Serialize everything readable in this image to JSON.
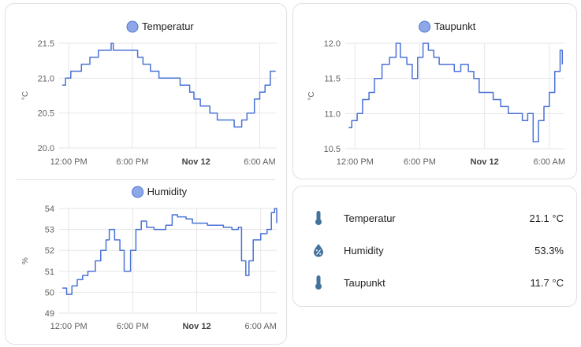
{
  "colors": {
    "line": "#4a72d6",
    "legend_dot": "#8fa7e6",
    "grid": "#e6e6e6",
    "icon": "#44739e"
  },
  "charts": [
    {
      "legend": "Temperatur",
      "unit": "°C",
      "y_ticks": [
        "21.5",
        "21.0",
        "20.5",
        "20.0"
      ],
      "x_ticks": [
        "12:00 PM",
        "6:00 PM",
        "Nov 12",
        "6:00 AM"
      ]
    },
    {
      "legend": "Taupunkt",
      "unit": "°C",
      "y_ticks": [
        "12.0",
        "11.5",
        "11.0",
        "10.5"
      ],
      "x_ticks": [
        "12:00 PM",
        "6:00 PM",
        "Nov 12",
        "6:00 AM"
      ]
    },
    {
      "legend": "Humidity",
      "unit": "%",
      "y_ticks": [
        "54",
        "53",
        "52",
        "51",
        "50",
        "49"
      ],
      "x_ticks": [
        "12:00 PM",
        "6:00 PM",
        "Nov 12",
        "6:00 AM"
      ]
    }
  ],
  "chart_data": [
    {
      "type": "line",
      "title": "",
      "series": [
        {
          "name": "Temperatur",
          "values": [
            [
              -0.6,
              20.9
            ],
            [
              -0.3,
              21.0
            ],
            [
              0.2,
              21.1
            ],
            [
              1.2,
              21.2
            ],
            [
              2.0,
              21.3
            ],
            [
              2.8,
              21.4
            ],
            [
              4.0,
              21.5
            ],
            [
              4.2,
              21.4
            ],
            [
              5.0,
              21.4
            ],
            [
              5.8,
              21.4
            ],
            [
              6.5,
              21.3
            ],
            [
              7.0,
              21.2
            ],
            [
              7.7,
              21.1
            ],
            [
              8.2,
              21.1
            ],
            [
              8.5,
              21.0
            ],
            [
              9.2,
              21.0
            ],
            [
              9.8,
              21.0
            ],
            [
              10.5,
              20.9
            ],
            [
              11.4,
              20.8
            ],
            [
              11.8,
              20.7
            ],
            [
              12.4,
              20.6
            ],
            [
              13.3,
              20.5
            ],
            [
              14.0,
              20.4
            ],
            [
              15.0,
              20.4
            ],
            [
              15.6,
              20.3
            ],
            [
              16.3,
              20.4
            ],
            [
              16.8,
              20.5
            ],
            [
              17.5,
              20.7
            ],
            [
              18.0,
              20.8
            ],
            [
              18.5,
              20.9
            ],
            [
              19.0,
              21.1
            ],
            [
              19.5,
              21.1
            ]
          ]
        }
      ],
      "xlabel": "",
      "ylabel": "°C",
      "xlim": [
        -0.9,
        19.6
      ],
      "ylim": [
        20.0,
        21.5
      ]
    },
    {
      "type": "line",
      "title": "",
      "series": [
        {
          "name": "Taupunkt",
          "values": [
            [
              -0.6,
              10.8
            ],
            [
              -0.3,
              10.9
            ],
            [
              0.2,
              11.0
            ],
            [
              0.7,
              11.2
            ],
            [
              1.3,
              11.3
            ],
            [
              1.8,
              11.5
            ],
            [
              2.5,
              11.7
            ],
            [
              3.2,
              11.8
            ],
            [
              3.8,
              12.0
            ],
            [
              4.2,
              11.8
            ],
            [
              4.8,
              11.7
            ],
            [
              5.3,
              11.5
            ],
            [
              5.8,
              11.8
            ],
            [
              6.3,
              12.0
            ],
            [
              6.8,
              11.9
            ],
            [
              7.3,
              11.8
            ],
            [
              7.8,
              11.7
            ],
            [
              8.5,
              11.7
            ],
            [
              9.2,
              11.6
            ],
            [
              9.8,
              11.7
            ],
            [
              10.5,
              11.6
            ],
            [
              11.0,
              11.5
            ],
            [
              11.5,
              11.3
            ],
            [
              12.0,
              11.3
            ],
            [
              12.8,
              11.2
            ],
            [
              13.5,
              11.1
            ],
            [
              14.2,
              11.0
            ],
            [
              15.0,
              11.0
            ],
            [
              15.5,
              10.9
            ],
            [
              16.0,
              11.0
            ],
            [
              16.5,
              10.6
            ],
            [
              17.0,
              10.9
            ],
            [
              17.5,
              11.1
            ],
            [
              18.0,
              11.3
            ],
            [
              18.5,
              11.6
            ],
            [
              19.0,
              11.9
            ],
            [
              19.2,
              11.7
            ]
          ]
        }
      ],
      "xlabel": "",
      "ylabel": "°C",
      "xlim": [
        -0.9,
        19.4
      ],
      "ylim": [
        10.5,
        12.0
      ]
    },
    {
      "type": "line",
      "title": "",
      "series": [
        {
          "name": "Humidity",
          "values": [
            [
              -0.6,
              50.2
            ],
            [
              -0.2,
              49.9
            ],
            [
              0.3,
              50.3
            ],
            [
              0.8,
              50.6
            ],
            [
              1.3,
              50.8
            ],
            [
              1.8,
              51.0
            ],
            [
              2.5,
              51.5
            ],
            [
              3.0,
              52.0
            ],
            [
              3.5,
              52.5
            ],
            [
              3.8,
              53.0
            ],
            [
              4.3,
              52.5
            ],
            [
              4.8,
              52.0
            ],
            [
              5.2,
              51.0
            ],
            [
              5.8,
              52.0
            ],
            [
              6.3,
              53.0
            ],
            [
              6.8,
              53.4
            ],
            [
              7.3,
              53.1
            ],
            [
              8.0,
              53.0
            ],
            [
              8.6,
              53.0
            ],
            [
              9.1,
              53.2
            ],
            [
              9.7,
              53.7
            ],
            [
              10.2,
              53.6
            ],
            [
              11.0,
              53.5
            ],
            [
              11.6,
              53.3
            ],
            [
              12.3,
              53.3
            ],
            [
              13.0,
              53.2
            ],
            [
              13.8,
              53.2
            ],
            [
              14.5,
              53.1
            ],
            [
              15.3,
              53.0
            ],
            [
              15.9,
              53.1
            ],
            [
              16.2,
              51.5
            ],
            [
              16.6,
              50.8
            ],
            [
              16.9,
              51.5
            ],
            [
              17.3,
              52.5
            ],
            [
              18.0,
              52.8
            ],
            [
              18.6,
              53.0
            ],
            [
              19.0,
              53.8
            ],
            [
              19.3,
              54.0
            ],
            [
              19.5,
              53.3
            ]
          ]
        }
      ],
      "xlabel": "",
      "ylabel": "%",
      "xlim": [
        -0.9,
        19.5
      ],
      "ylim": [
        49,
        54
      ]
    }
  ],
  "entities": [
    {
      "name": "Temperatur",
      "value": "21.1 °C",
      "icon": "thermometer-icon"
    },
    {
      "name": "Humidity",
      "value": "53.3%",
      "icon": "water-percent-icon"
    },
    {
      "name": "Taupunkt",
      "value": "11.7 °C",
      "icon": "thermometer-icon"
    }
  ]
}
